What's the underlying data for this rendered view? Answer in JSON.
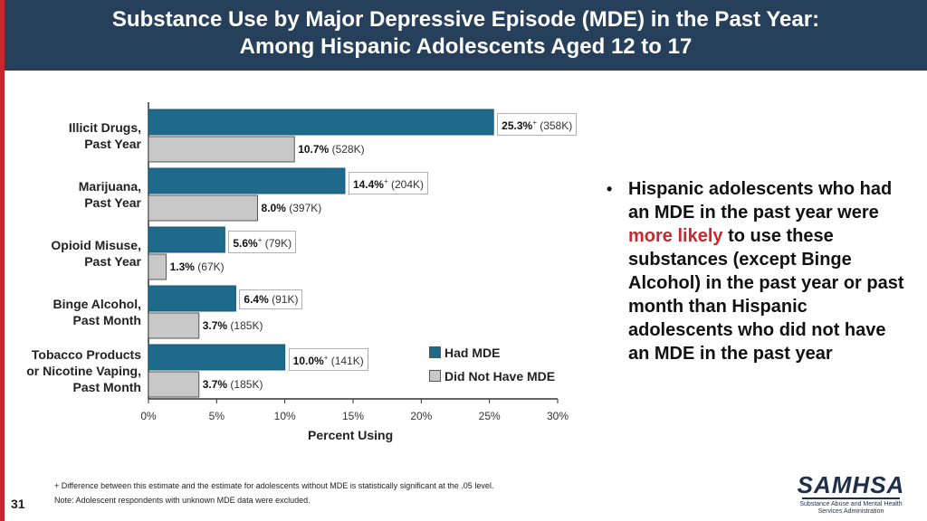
{
  "header": {
    "line1": "Substance Use by Major Depressive Episode (MDE) in the Past Year:",
    "line2": "Among Hispanic Adolescents Aged 12 to 17"
  },
  "colors": {
    "header_bg": "#263f5a",
    "accent_red": "#c8282d",
    "had_mde": "#1e6a8a",
    "no_mde": "#c8c8c8"
  },
  "chart_data": {
    "type": "bar",
    "orientation": "horizontal",
    "xlabel": "Percent Using",
    "xlim": [
      0,
      30
    ],
    "x_ticks": [
      "0%",
      "5%",
      "10%",
      "15%",
      "20%",
      "25%",
      "30%"
    ],
    "categories": [
      [
        "Illicit Drugs,",
        "Past Year"
      ],
      [
        "Marijuana,",
        "Past Year"
      ],
      [
        "Opioid Misuse,",
        "Past Year"
      ],
      [
        "Binge Alcohol,",
        "Past Month"
      ],
      [
        "Tobacco Products",
        "or Nicotine Vaping,",
        "Past Month"
      ]
    ],
    "legend_position": "bottom-right",
    "series": [
      {
        "name": "Had MDE",
        "values": [
          25.3,
          14.4,
          5.6,
          6.4,
          10.0
        ],
        "labels": [
          "25.3%",
          "14.4%",
          "5.6%",
          "6.4%",
          "10.0%"
        ],
        "significant": [
          "+",
          "+",
          "+",
          "",
          "+"
        ],
        "counts": [
          "(358K)",
          "(204K)",
          "(79K)",
          "(91K)",
          "(141K)"
        ]
      },
      {
        "name": "Did Not Have MDE",
        "values": [
          10.7,
          8.0,
          1.3,
          3.7,
          3.7
        ],
        "labels": [
          "10.7%",
          "8.0%",
          "1.3%",
          "3.7%",
          "3.7%"
        ],
        "significant": [
          "",
          "",
          "",
          "",
          ""
        ],
        "counts": [
          "(528K)",
          "(397K)",
          "(67K)",
          "(185K)",
          "(185K)"
        ]
      }
    ]
  },
  "bullet": {
    "symbol": "•",
    "before": "Hispanic adolescents who had an MDE in the past year were ",
    "highlight": "more likely",
    "after": " to use these substances (except Binge Alcohol) in the past year or past month than Hispanic adolescents who did not have an MDE in the past year"
  },
  "footnotes": {
    "sig": "+ Difference between this estimate and the estimate for adolescents without MDE is statistically significant at the .05 level.",
    "note": "Note: Adolescent respondents with unknown MDE data were excluded."
  },
  "page_number": "31",
  "logo": {
    "word": "SAMHSA",
    "sub1": "Substance Abuse and Mental Health",
    "sub2": "Services Administration"
  }
}
